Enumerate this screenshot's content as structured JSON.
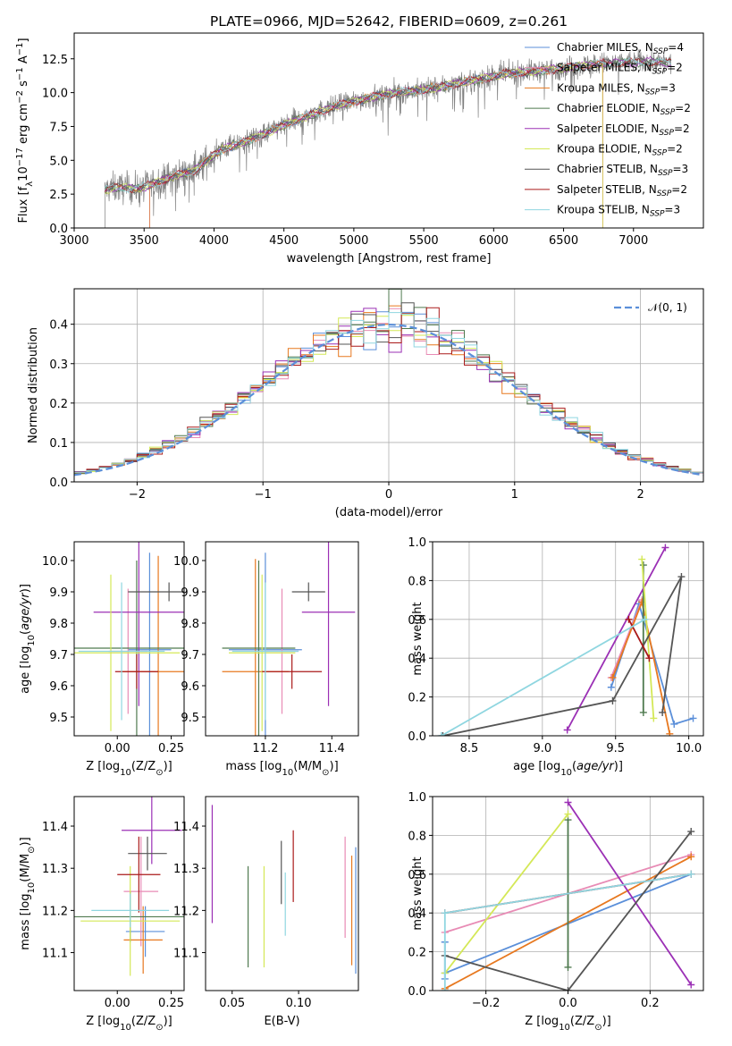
{
  "colors": {
    "chab_miles": "#5b8fd9",
    "salp_miles": "#e88bb5",
    "krou_miles": "#e7781f",
    "chab_elodie": "#4f7a4f",
    "salp_elodie": "#9b30b5",
    "krou_elodie": "#d4e857",
    "chab_stelib": "#555555",
    "salp_stelib": "#aa1a1a",
    "krou_stelib": "#8fd6e0",
    "spectrum": "#808080",
    "normal": "#5b8fd9"
  },
  "chart_data": [
    {
      "id": "spectrum",
      "type": "line",
      "title": "PLATE=0966, MJD=52642, FIBERID=0609, z=0.261",
      "xlabel": "wavelength [Angstrom, rest frame]",
      "ylabel_html": "Flux [f<tspan baseline-shift='sub' font-size='10'>λ</tspan>10<tspan baseline-shift='super' font-size='10'>−17</tspan> erg cm<tspan baseline-shift='super' font-size='10'>−2</tspan> s<tspan baseline-shift='super' font-size='10'>−1</tspan> A<tspan baseline-shift='super' font-size='10'>−1</tspan>]",
      "xlim": [
        3000,
        7500
      ],
      "ylim": [
        0,
        14.4
      ],
      "xticks": [
        "3000",
        "3500",
        "4000",
        "4500",
        "5000",
        "5500",
        "6000",
        "6500",
        "7000"
      ],
      "yticks": [
        "0.0",
        "2.5",
        "5.0",
        "7.5",
        "10.0",
        "12.5"
      ],
      "observed_range": [
        3220,
        7270
      ],
      "continuum": [
        [
          3220,
          2.8
        ],
        [
          3300,
          3.0
        ],
        [
          3450,
          2.9
        ],
        [
          3550,
          3.2
        ],
        [
          3700,
          3.8
        ],
        [
          3850,
          4.2
        ],
        [
          3950,
          5.0
        ],
        [
          4050,
          5.8
        ],
        [
          4200,
          6.3
        ],
        [
          4350,
          6.9
        ],
        [
          4500,
          7.6
        ],
        [
          4700,
          8.4
        ],
        [
          4900,
          9.1
        ],
        [
          5100,
          9.6
        ],
        [
          5300,
          10.0
        ],
        [
          5500,
          10.2
        ],
        [
          5700,
          10.6
        ],
        [
          5900,
          11.0
        ],
        [
          6100,
          11.4
        ],
        [
          6300,
          11.6
        ],
        [
          6500,
          11.8
        ],
        [
          6700,
          12.1
        ],
        [
          6900,
          12.2
        ],
        [
          7100,
          12.3
        ],
        [
          7270,
          12.2
        ]
      ],
      "legend": [
        {
          "label": "Chabrier MILES, N",
          "sub": "SSP",
          "tail": "=4",
          "color": "chab_miles"
        },
        {
          "label": "Salpeter MILES, N",
          "sub": "SSP",
          "tail": "=2",
          "color": "salp_miles"
        },
        {
          "label": "Kroupa MILES, N",
          "sub": "SSP",
          "tail": "=3",
          "color": "krou_miles"
        },
        {
          "label": "Chabrier ELODIE, N",
          "sub": "SSP",
          "tail": "=2",
          "color": "chab_elodie"
        },
        {
          "label": "Salpeter ELODIE, N",
          "sub": "SSP",
          "tail": "=2",
          "color": "salp_elodie"
        },
        {
          "label": "Kroupa ELODIE, N",
          "sub": "SSP",
          "tail": "=2",
          "color": "krou_elodie"
        },
        {
          "label": "Chabrier STELIB, N",
          "sub": "SSP",
          "tail": "=3",
          "color": "chab_stelib"
        },
        {
          "label": "Salpeter STELIB, N",
          "sub": "SSP",
          "tail": "=2",
          "color": "salp_stelib"
        },
        {
          "label": "Kroupa STELIB, N",
          "sub": "SSP",
          "tail": "=3",
          "color": "krou_stelib"
        }
      ],
      "legend_placement": "upper-right"
    },
    {
      "id": "residuals",
      "type": "histogram",
      "xlabel": "(data-model)/error",
      "ylabel": "Normed distribution",
      "xlim": [
        -2.5,
        2.5
      ],
      "ylim": [
        0,
        0.49
      ],
      "xticks": [
        "−2",
        "−1",
        "0",
        "1",
        "2"
      ],
      "yticks": [
        "0.0",
        "0.1",
        "0.2",
        "0.3",
        "0.4"
      ],
      "grid": true,
      "bin_edges_start": -2.5,
      "bin_width": 0.1,
      "n_bins": 50,
      "legend": [
        {
          "label": "𝒩(0, 1)",
          "color": "normal"
        }
      ],
      "legend_placement": "upper-right"
    },
    {
      "id": "age_vs_Z",
      "type": "errorbar",
      "xlabel_html": "Z [log<tspan baseline-shift='sub' font-size='10'>10</tspan>(Z/Z<tspan baseline-shift='sub' font-size='10'>⊙</tspan>)]",
      "ylabel_html": "age  [log<tspan baseline-shift='sub' font-size='10'>10</tspan>(<tspan font-style='italic'>age/yr</tspan>)]",
      "xlim": [
        -0.2,
        0.31
      ],
      "ylim": [
        9.44,
        10.06
      ],
      "xticks": [
        "0.00",
        "0.25"
      ],
      "yticks": [
        "9.5",
        "9.6",
        "9.7",
        "9.8",
        "9.9",
        "10.0"
      ],
      "points": [
        {
          "c": "chab_miles",
          "x": 0.15,
          "xe": 0.1,
          "y": 9.715,
          "ye": 0.31
        },
        {
          "c": "salp_miles",
          "x": 0.05,
          "xe": 0.09,
          "y": 9.71,
          "ye": 0.2
        },
        {
          "c": "krou_miles",
          "x": 0.19,
          "xe": 0.17,
          "y": 9.645,
          "ye": 0.37
        },
        {
          "c": "chab_elodie",
          "x": 0.09,
          "xe": 0.33,
          "y": 9.72,
          "ye": 0.28
        },
        {
          "c": "salp_elodie",
          "x": 0.1,
          "xe": 0.21,
          "y": 9.835,
          "ye": 0.3
        },
        {
          "c": "krou_elodie",
          "x": -0.03,
          "xe": 0.32,
          "y": 9.705,
          "ye": 0.25
        },
        {
          "c": "chab_stelib",
          "x": 0.24,
          "xe": 0.19,
          "y": 9.9,
          "ye": 0.03
        },
        {
          "c": "salp_stelib",
          "x": 0.09,
          "xe": 0.1,
          "y": 9.645,
          "ye": 0.055
        },
        {
          "c": "krou_stelib",
          "x": 0.02,
          "xe": 0.2,
          "y": 9.71,
          "ye": 0.22
        }
      ]
    },
    {
      "id": "age_vs_mass",
      "type": "errorbar",
      "xlabel_html": "mass [log<tspan baseline-shift='sub' font-size='10'>10</tspan>(M/M<tspan baseline-shift='sub' font-size='10'>⊙</tspan>)]",
      "xlim": [
        11.02,
        11.48
      ],
      "ylim": [
        9.44,
        10.06
      ],
      "xticks": [
        "11.2",
        "11.4"
      ],
      "yticks": [
        "9.5",
        "9.6",
        "9.7",
        "9.8",
        "9.9",
        "10.0"
      ],
      "points": [
        {
          "c": "chab_miles",
          "x": 11.2,
          "xe": 0.11,
          "y": 9.715,
          "ye": 0.31
        },
        {
          "c": "salp_miles",
          "x": 11.25,
          "xe": 0.05,
          "y": 9.71,
          "ye": 0.2
        },
        {
          "c": "krou_miles",
          "x": 11.17,
          "xe": 0.1,
          "y": 9.645,
          "ye": 0.36
        },
        {
          "c": "chab_elodie",
          "x": 11.18,
          "xe": 0.11,
          "y": 9.72,
          "ye": 0.28
        },
        {
          "c": "salp_elodie",
          "x": 11.39,
          "xe": 0.08,
          "y": 9.835,
          "ye": 0.3
        },
        {
          "c": "krou_elodie",
          "x": 11.19,
          "xe": 0.1,
          "y": 9.705,
          "ye": 0.25
        },
        {
          "c": "chab_stelib",
          "x": 11.33,
          "xe": 0.05,
          "y": 9.9,
          "ye": 0.03
        },
        {
          "c": "salp_stelib",
          "x": 11.28,
          "xe": 0.09,
          "y": 9.645,
          "ye": 0.055
        },
        {
          "c": "krou_stelib",
          "x": 11.2,
          "xe": 0.1,
          "y": 9.71,
          "ye": 0.22
        }
      ]
    },
    {
      "id": "weight_vs_age",
      "type": "line",
      "xlabel_html": "age  [log<tspan baseline-shift='sub' font-size='10'>10</tspan>(<tspan font-style='italic'>age/yr</tspan>)]",
      "ylabel": "mass weight",
      "xlim": [
        8.25,
        10.1
      ],
      "ylim": [
        0,
        1.0
      ],
      "xticks": [
        "8.5",
        "9.0",
        "9.5",
        "10.0"
      ],
      "yticks": [
        "0.0",
        "0.2",
        "0.4",
        "0.6",
        "0.8",
        "1.0"
      ],
      "grid": true,
      "series": [
        {
          "c": "chab_miles",
          "pts": [
            [
              9.47,
              0.25
            ],
            [
              9.66,
              0.68
            ],
            [
              9.9,
              0.06
            ],
            [
              10.03,
              0.09
            ]
          ]
        },
        {
          "c": "salp_miles",
          "pts": [
            [
              9.47,
              0.3
            ],
            [
              9.68,
              0.7
            ]
          ]
        },
        {
          "c": "krou_miles",
          "pts": [
            [
              9.48,
              0.3
            ],
            [
              9.68,
              0.69
            ],
            [
              9.87,
              0.01
            ]
          ]
        },
        {
          "c": "chab_elodie",
          "pts": [
            [
              9.69,
              0.88
            ],
            [
              9.69,
              0.12
            ]
          ]
        },
        {
          "c": "salp_elodie",
          "pts": [
            [
              9.17,
              0.03
            ],
            [
              9.84,
              0.97
            ]
          ]
        },
        {
          "c": "krou_elodie",
          "pts": [
            [
              9.68,
              0.91
            ],
            [
              9.76,
              0.09
            ]
          ]
        },
        {
          "c": "chab_stelib",
          "pts": [
            [
              8.32,
              0.0
            ],
            [
              9.48,
              0.18
            ],
            [
              9.95,
              0.82
            ],
            [
              9.82,
              0.12
            ]
          ]
        },
        {
          "c": "salp_stelib",
          "pts": [
            [
              9.59,
              0.6
            ],
            [
              9.73,
              0.4
            ]
          ]
        },
        {
          "c": "krou_stelib",
          "pts": [
            [
              8.31,
              0.0
            ],
            [
              9.7,
              0.6
            ]
          ]
        }
      ]
    },
    {
      "id": "mass_vs_Z",
      "type": "errorbar",
      "xlabel_html": "Z [log<tspan baseline-shift='sub' font-size='10'>10</tspan>(Z/Z<tspan baseline-shift='sub' font-size='10'>⊙</tspan>)]",
      "ylabel_html": "mass [log<tspan baseline-shift='sub' font-size='10'>10</tspan>(M/M<tspan baseline-shift='sub' font-size='10'>⊙</tspan>)]",
      "xlim": [
        -0.2,
        0.31
      ],
      "ylim": [
        11.01,
        11.47
      ],
      "xticks": [
        "0.00",
        "0.25"
      ],
      "yticks": [
        "11.1",
        "11.2",
        "11.3",
        "11.4"
      ],
      "points": [
        {
          "c": "chab_miles",
          "x": 0.13,
          "xe": 0.09,
          "y": 11.15,
          "ye": 0.06
        },
        {
          "c": "salp_miles",
          "x": 0.11,
          "xe": 0.08,
          "y": 11.245,
          "ye": 0.13
        },
        {
          "c": "krou_miles",
          "x": 0.12,
          "xe": 0.09,
          "y": 11.13,
          "ye": 0.08
        },
        {
          "c": "chab_elodie",
          "x": 0.06,
          "xe": 0.26,
          "y": 11.185,
          "ye": 0.06
        },
        {
          "c": "salp_elodie",
          "x": 0.16,
          "xe": 0.14,
          "y": 11.39,
          "ye": 0.08
        },
        {
          "c": "krou_elodie",
          "x": 0.06,
          "xe": 0.23,
          "y": 11.175,
          "ye": 0.13
        },
        {
          "c": "chab_stelib",
          "x": 0.14,
          "xe": 0.09,
          "y": 11.335,
          "ye": 0.04
        },
        {
          "c": "salp_stelib",
          "x": 0.1,
          "xe": 0.1,
          "y": 11.285,
          "ye": 0.09
        },
        {
          "c": "krou_stelib",
          "x": 0.06,
          "xe": 0.18,
          "y": 11.2,
          "ye": 0.04
        }
      ]
    },
    {
      "id": "mass_vs_ebv",
      "type": "errorbar",
      "xlabel": "E(B-V)",
      "xlim": [
        0.03,
        0.145
      ],
      "ylim": [
        11.01,
        11.47
      ],
      "xticks": [
        "0.05",
        "0.10"
      ],
      "yticks": [
        "11.1",
        "11.2",
        "11.3",
        "11.4"
      ],
      "points": [
        {
          "c": "chab_miles",
          "x": 0.143,
          "xe": 0,
          "y": 11.2,
          "ye": 0.15
        },
        {
          "c": "salp_miles",
          "x": 0.135,
          "xe": 0,
          "y": 11.255,
          "ye": 0.12
        },
        {
          "c": "krou_miles",
          "x": 0.14,
          "xe": 0,
          "y": 11.2,
          "ye": 0.13
        },
        {
          "c": "chab_elodie",
          "x": 0.062,
          "xe": 0,
          "y": 11.185,
          "ye": 0.12
        },
        {
          "c": "salp_elodie",
          "x": 0.035,
          "xe": 0,
          "y": 11.31,
          "ye": 0.14
        },
        {
          "c": "krou_elodie",
          "x": 0.074,
          "xe": 0,
          "y": 11.185,
          "ye": 0.12
        },
        {
          "c": "chab_stelib",
          "x": 0.087,
          "xe": 0,
          "y": 11.29,
          "ye": 0.075
        },
        {
          "c": "salp_stelib",
          "x": 0.096,
          "xe": 0,
          "y": 11.305,
          "ye": 0.085
        },
        {
          "c": "krou_stelib",
          "x": 0.09,
          "xe": 0,
          "y": 11.215,
          "ye": 0.075
        }
      ]
    },
    {
      "id": "weight_vs_Z",
      "type": "line",
      "xlabel_html": "Z [log<tspan baseline-shift='sub' font-size='10'>10</tspan>(Z/Z<tspan baseline-shift='sub' font-size='10'>⊙</tspan>)]",
      "ylabel": "mass weight",
      "xlim": [
        -0.33,
        0.33
      ],
      "ylim": [
        0,
        1.0
      ],
      "xticks": [
        "−0.2",
        "0.0",
        "0.2"
      ],
      "yticks": [
        "0.0",
        "0.2",
        "0.4",
        "0.6",
        "0.8",
        "1.0"
      ],
      "grid": true,
      "series": [
        {
          "c": "chab_miles",
          "pts": [
            [
              -0.3,
              0.25
            ],
            [
              -0.3,
              0.06
            ],
            [
              -0.3,
              0.09
            ],
            [
              0.3,
              0.6
            ]
          ]
        },
        {
          "c": "salp_miles",
          "pts": [
            [
              -0.3,
              0.3
            ],
            [
              0.3,
              0.7
            ]
          ]
        },
        {
          "c": "krou_miles",
          "pts": [
            [
              -0.3,
              0.01
            ],
            [
              0.3,
              0.69
            ]
          ]
        },
        {
          "c": "chab_elodie",
          "pts": [
            [
              0.0,
              0.88
            ],
            [
              0.0,
              0.12
            ]
          ]
        },
        {
          "c": "salp_elodie",
          "pts": [
            [
              0.0,
              0.97
            ],
            [
              0.3,
              0.03
            ]
          ]
        },
        {
          "c": "krou_elodie",
          "pts": [
            [
              -0.3,
              0.09
            ],
            [
              0.0,
              0.91
            ]
          ]
        },
        {
          "c": "chab_stelib",
          "pts": [
            [
              -0.3,
              0.18
            ],
            [
              0.0,
              0.0
            ],
            [
              0.3,
              0.82
            ]
          ]
        },
        {
          "c": "salp_stelib",
          "pts": [
            [
              -0.3,
              0.4
            ],
            [
              0.3,
              0.6
            ]
          ]
        },
        {
          "c": "krou_stelib",
          "pts": [
            [
              -0.3,
              0.0
            ],
            [
              -0.3,
              0.4
            ],
            [
              0.3,
              0.6
            ]
          ]
        }
      ]
    }
  ]
}
